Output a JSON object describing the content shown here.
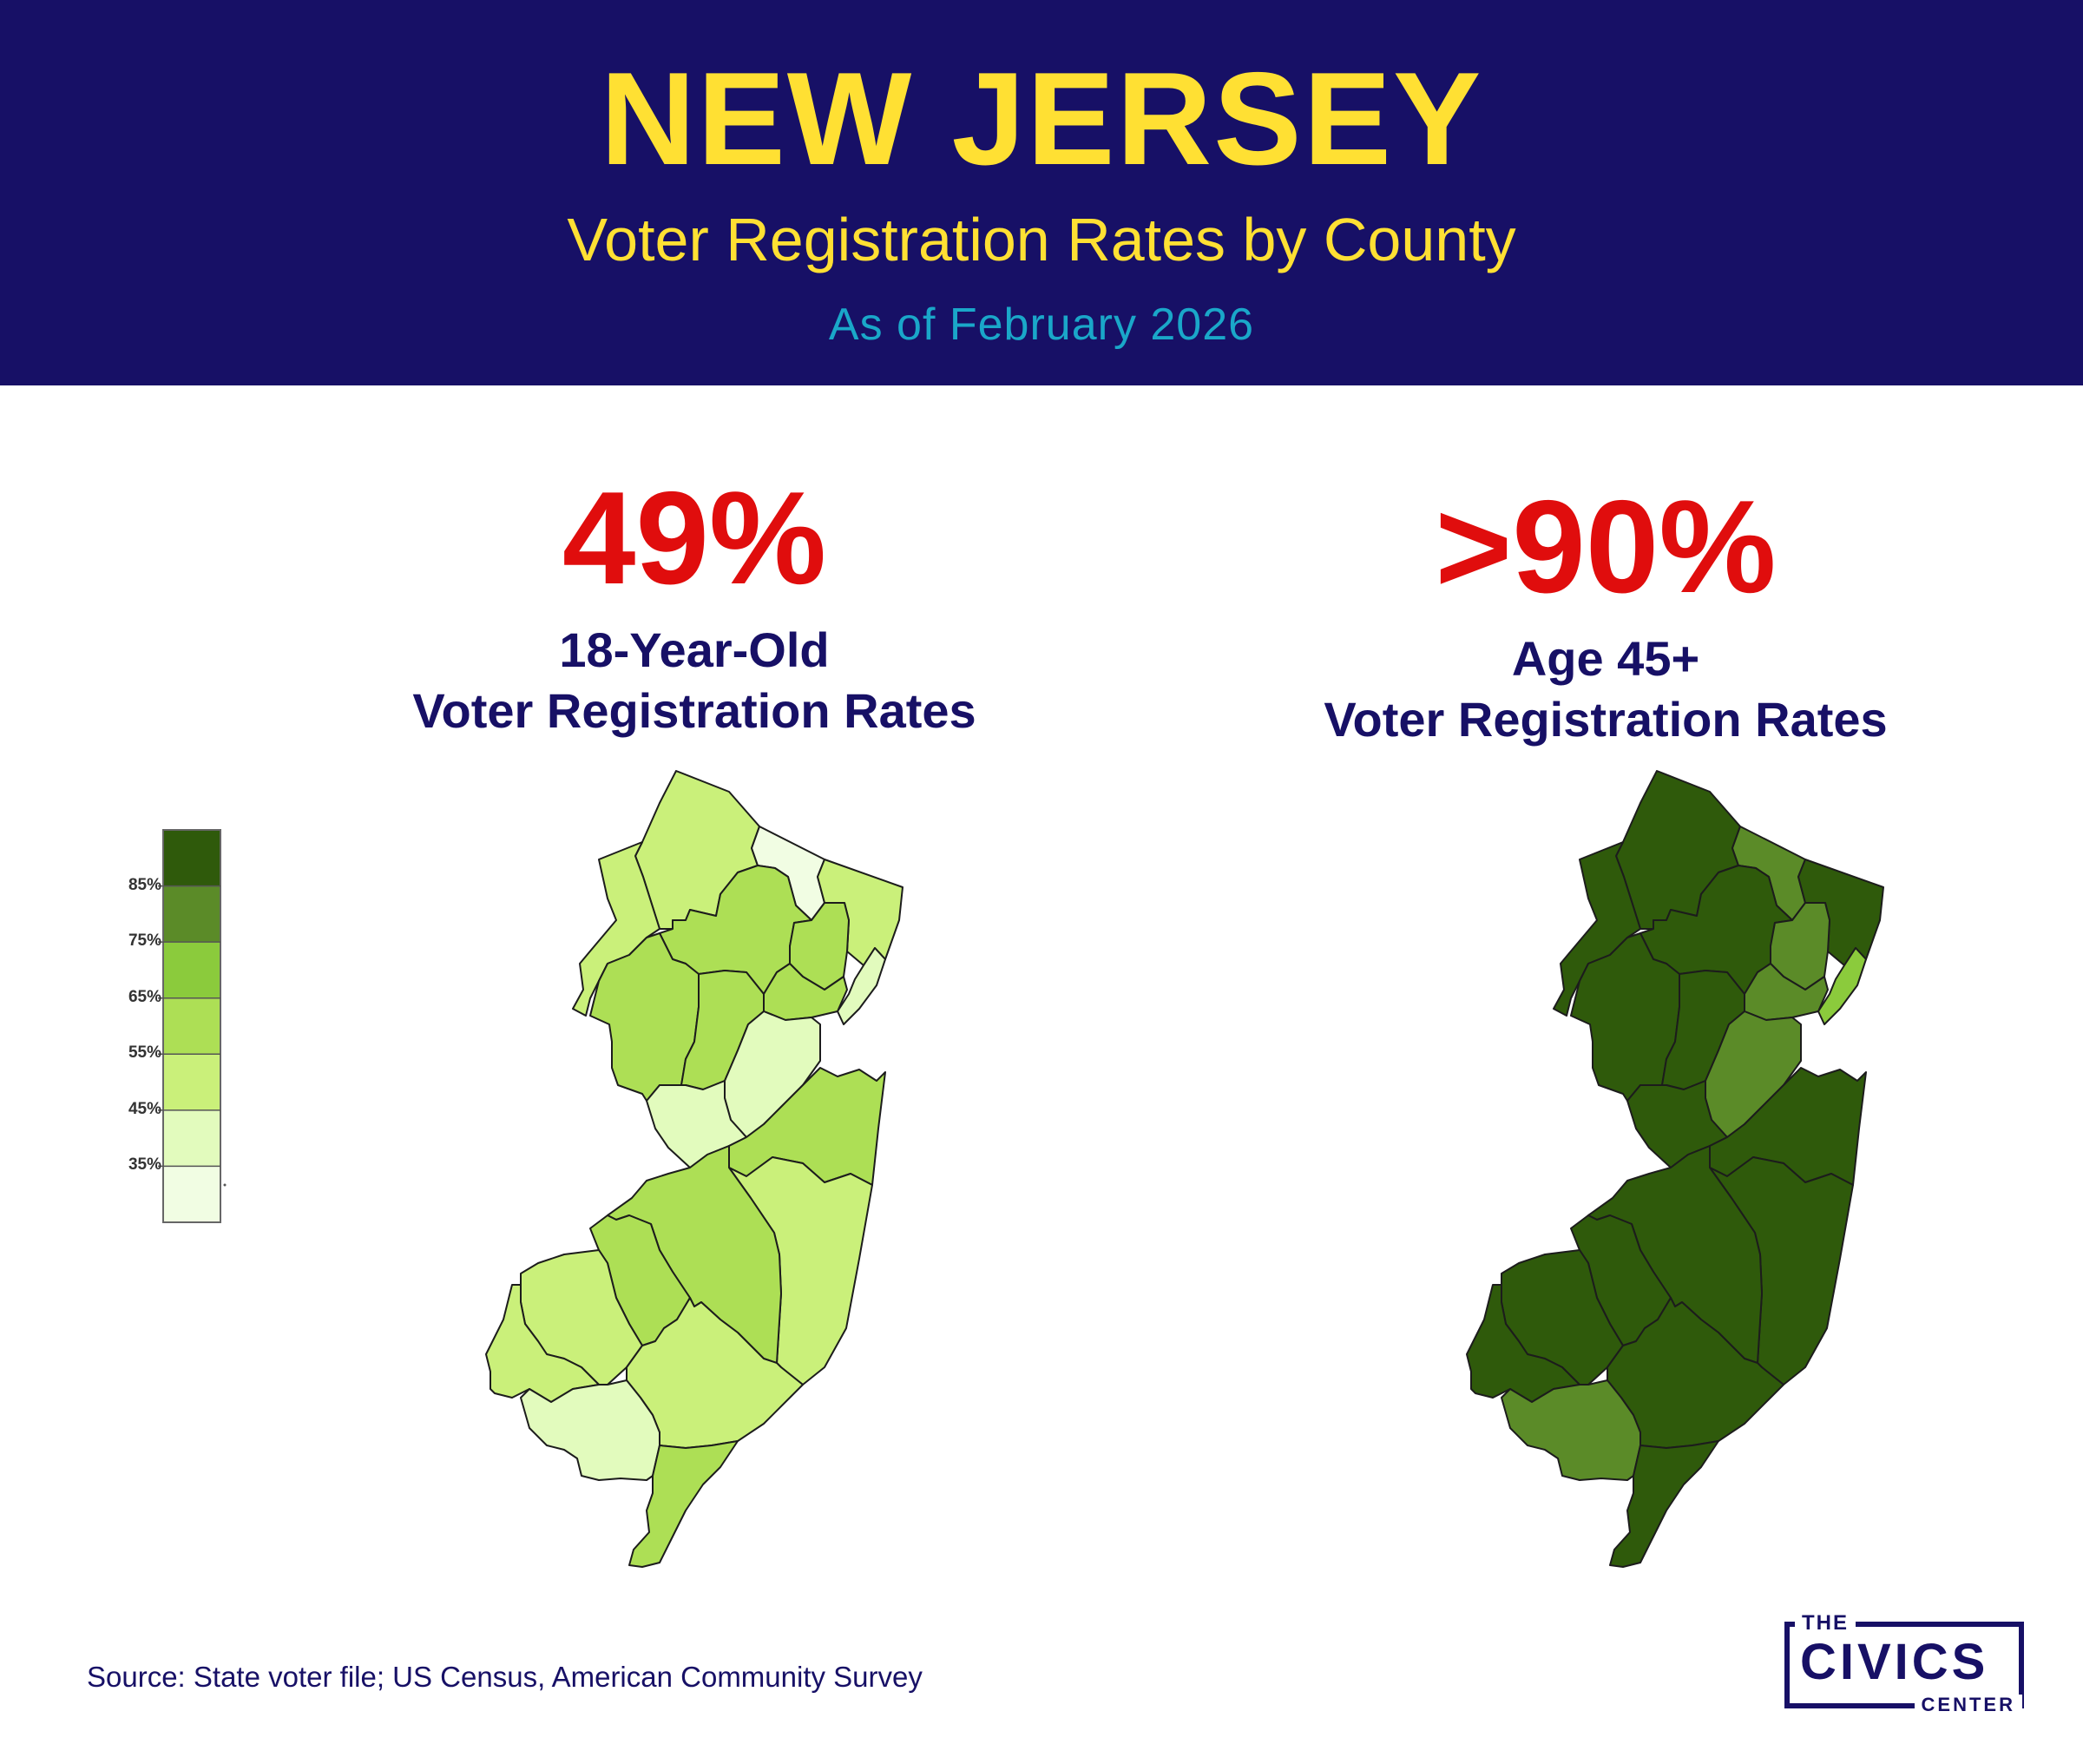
{
  "header": {
    "title": "NEW JERSEY",
    "subtitle": "Voter Registration Rates by County",
    "as_of": "As of February 2026"
  },
  "colors": {
    "header_bg": "#171066",
    "title": "#ffe033",
    "as_of": "#1aa7c9",
    "stat": "#e00d0d",
    "label": "#171066",
    "scale": [
      "#f1fde3",
      "#e2fbbd",
      "#caf07a",
      "#addf55",
      "#8bcb3c",
      "#5b8b28",
      "#2f5a0b"
    ]
  },
  "left_panel": {
    "stat": "49%",
    "label_line1": "18-Year-Old",
    "label_line2": "Voter Registration Rates"
  },
  "right_panel": {
    "stat": ">90%",
    "label_line1": "Age 45+",
    "label_line2": "Voter Registration Rates"
  },
  "legend": {
    "ticks": [
      "85%",
      "75%",
      "65%",
      "55%",
      "45%",
      "35%"
    ]
  },
  "map_data": {
    "young": [
      {
        "county": "Sussex",
        "bin": 2
      },
      {
        "county": "Passaic",
        "bin": 0
      },
      {
        "county": "Bergen",
        "bin": 2
      },
      {
        "county": "Hudson",
        "bin": 1
      },
      {
        "county": "Warren",
        "bin": 2
      },
      {
        "county": "Morris",
        "bin": 3
      },
      {
        "county": "Essex",
        "bin": 3
      },
      {
        "county": "Union",
        "bin": 3
      },
      {
        "county": "Hunterdon",
        "bin": 3
      },
      {
        "county": "Somerset",
        "bin": 3
      },
      {
        "county": "Middlesex",
        "bin": 1
      },
      {
        "county": "Mercer",
        "bin": 1
      },
      {
        "county": "Monmouth",
        "bin": 3
      },
      {
        "county": "Ocean",
        "bin": 2
      },
      {
        "county": "Burlington",
        "bin": 3
      },
      {
        "county": "Camden",
        "bin": 3
      },
      {
        "county": "Gloucester",
        "bin": 2
      },
      {
        "county": "Salem",
        "bin": 2
      },
      {
        "county": "Atlantic",
        "bin": 2
      },
      {
        "county": "Cumberland",
        "bin": 1
      },
      {
        "county": "Cape May",
        "bin": 3
      }
    ],
    "older": [
      {
        "county": "Sussex",
        "bin": 6
      },
      {
        "county": "Passaic",
        "bin": 5
      },
      {
        "county": "Bergen",
        "bin": 6
      },
      {
        "county": "Hudson",
        "bin": 4
      },
      {
        "county": "Warren",
        "bin": 6
      },
      {
        "county": "Morris",
        "bin": 6
      },
      {
        "county": "Essex",
        "bin": 5
      },
      {
        "county": "Union",
        "bin": 5
      },
      {
        "county": "Hunterdon",
        "bin": 6
      },
      {
        "county": "Somerset",
        "bin": 6
      },
      {
        "county": "Middlesex",
        "bin": 5
      },
      {
        "county": "Mercer",
        "bin": 6
      },
      {
        "county": "Monmouth",
        "bin": 6
      },
      {
        "county": "Ocean",
        "bin": 6
      },
      {
        "county": "Burlington",
        "bin": 6
      },
      {
        "county": "Camden",
        "bin": 6
      },
      {
        "county": "Gloucester",
        "bin": 6
      },
      {
        "county": "Salem",
        "bin": 6
      },
      {
        "county": "Atlantic",
        "bin": 6
      },
      {
        "county": "Cumberland",
        "bin": 5
      },
      {
        "county": "Cape May",
        "bin": 6
      }
    ]
  },
  "source": "Source: State voter file; US Census, American Community Survey",
  "logo": {
    "the": "THE",
    "civics": "CIVICS",
    "center": "CENTER"
  }
}
